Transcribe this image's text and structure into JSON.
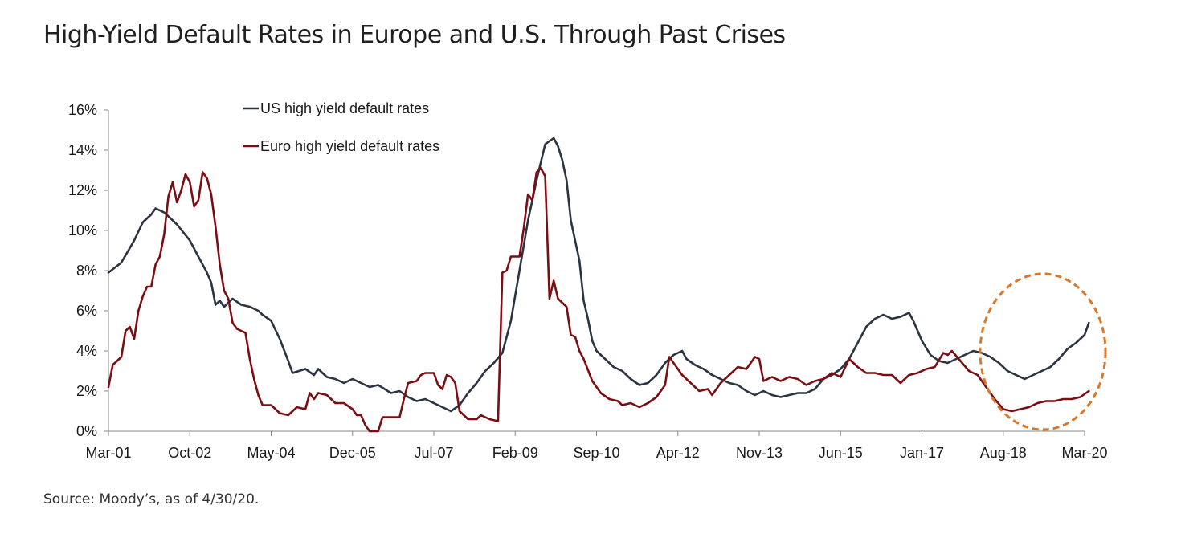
{
  "title": "High-Yield Default Rates in Europe and U.S. Through Past Crises",
  "source": "Source: Moody’s, as of 4/30/20.",
  "colors": {
    "us": "#2b3440",
    "euro": "#7a0e13",
    "highlight": "#d9782a",
    "axis": "#888888"
  },
  "chart_data": {
    "type": "line",
    "title": "High-Yield Default Rates in Europe and U.S. Through Past Crises",
    "xlabel": "",
    "ylabel": "",
    "ylim": [
      0,
      16
    ],
    "yticks": [
      "0%",
      "2%",
      "4%",
      "6%",
      "8%",
      "10%",
      "12%",
      "14%",
      "16%"
    ],
    "yticks_values": [
      0,
      2,
      4,
      6,
      8,
      10,
      12,
      14,
      16
    ],
    "xticks": [
      "Mar-01",
      "Oct-02",
      "May-04",
      "Dec-05",
      "Jul-07",
      "Feb-09",
      "Sep-10",
      "Apr-12",
      "Nov-13",
      "Jun-15",
      "Jan-17",
      "Aug-18",
      "Mar-20"
    ],
    "xticks_values": [
      0,
      19,
      38,
      57,
      76,
      95,
      114,
      133,
      152,
      171,
      190,
      209,
      228
    ],
    "x_unit": "months since Mar-01",
    "legend_position": "top-left",
    "annotation": "dashed orange circle highlighting Aug-18 to Mar-20",
    "series": [
      {
        "name": "US high yield default rates",
        "color": "#2b3440",
        "points": [
          [
            0,
            7.9
          ],
          [
            3,
            8.4
          ],
          [
            6,
            9.5
          ],
          [
            8,
            10.4
          ],
          [
            10,
            10.8
          ],
          [
            11,
            11.1
          ],
          [
            13,
            10.9
          ],
          [
            16,
            10.3
          ],
          [
            19,
            9.5
          ],
          [
            21,
            8.7
          ],
          [
            23,
            7.9
          ],
          [
            24,
            7.4
          ],
          [
            25,
            6.3
          ],
          [
            26,
            6.5
          ],
          [
            27,
            6.2
          ],
          [
            29,
            6.6
          ],
          [
            31,
            6.3
          ],
          [
            33,
            6.2
          ],
          [
            35,
            6.0
          ],
          [
            36,
            5.8
          ],
          [
            38,
            5.5
          ],
          [
            40,
            4.6
          ],
          [
            42,
            3.5
          ],
          [
            43,
            2.9
          ],
          [
            46,
            3.1
          ],
          [
            48,
            2.8
          ],
          [
            49,
            3.1
          ],
          [
            51,
            2.7
          ],
          [
            53,
            2.6
          ],
          [
            55,
            2.4
          ],
          [
            57,
            2.6
          ],
          [
            59,
            2.4
          ],
          [
            61,
            2.2
          ],
          [
            63,
            2.3
          ],
          [
            66,
            1.9
          ],
          [
            68,
            2.0
          ],
          [
            70,
            1.7
          ],
          [
            72,
            1.5
          ],
          [
            74,
            1.6
          ],
          [
            76,
            1.4
          ],
          [
            78,
            1.2
          ],
          [
            80,
            1.0
          ],
          [
            82,
            1.3
          ],
          [
            84,
            1.9
          ],
          [
            86,
            2.4
          ],
          [
            88,
            3.0
          ],
          [
            90,
            3.4
          ],
          [
            92,
            3.9
          ],
          [
            94,
            5.5
          ],
          [
            96,
            8.0
          ],
          [
            98,
            10.5
          ],
          [
            100,
            12.5
          ],
          [
            101,
            13.4
          ],
          [
            102,
            14.3
          ],
          [
            104,
            14.6
          ],
          [
            105,
            14.2
          ],
          [
            106,
            13.5
          ],
          [
            107,
            12.5
          ],
          [
            108,
            10.5
          ],
          [
            110,
            8.5
          ],
          [
            111,
            6.5
          ],
          [
            112,
            5.6
          ],
          [
            113,
            4.5
          ],
          [
            114,
            4.0
          ],
          [
            116,
            3.6
          ],
          [
            118,
            3.2
          ],
          [
            120,
            3.0
          ],
          [
            122,
            2.6
          ],
          [
            124,
            2.3
          ],
          [
            126,
            2.4
          ],
          [
            128,
            2.8
          ],
          [
            130,
            3.4
          ],
          [
            132,
            3.8
          ],
          [
            134,
            4.0
          ],
          [
            135,
            3.6
          ],
          [
            137,
            3.3
          ],
          [
            139,
            3.1
          ],
          [
            141,
            2.8
          ],
          [
            143,
            2.6
          ],
          [
            145,
            2.4
          ],
          [
            147,
            2.3
          ],
          [
            149,
            2.0
          ],
          [
            151,
            1.8
          ],
          [
            153,
            2.0
          ],
          [
            155,
            1.8
          ],
          [
            157,
            1.7
          ],
          [
            159,
            1.8
          ],
          [
            161,
            1.9
          ],
          [
            163,
            1.9
          ],
          [
            165,
            2.1
          ],
          [
            167,
            2.6
          ],
          [
            169,
            2.8
          ],
          [
            171,
            3.1
          ],
          [
            173,
            3.6
          ],
          [
            175,
            4.4
          ],
          [
            177,
            5.2
          ],
          [
            179,
            5.6
          ],
          [
            181,
            5.8
          ],
          [
            183,
            5.6
          ],
          [
            185,
            5.7
          ],
          [
            187,
            5.9
          ],
          [
            188,
            5.5
          ],
          [
            190,
            4.5
          ],
          [
            192,
            3.8
          ],
          [
            194,
            3.5
          ],
          [
            196,
            3.4
          ],
          [
            198,
            3.6
          ],
          [
            200,
            3.8
          ],
          [
            202,
            4.0
          ],
          [
            204,
            3.9
          ],
          [
            206,
            3.7
          ],
          [
            208,
            3.4
          ],
          [
            210,
            3.0
          ],
          [
            212,
            2.8
          ],
          [
            214,
            2.6
          ],
          [
            216,
            2.8
          ],
          [
            218,
            3.0
          ],
          [
            220,
            3.2
          ],
          [
            222,
            3.6
          ],
          [
            224,
            4.1
          ],
          [
            226,
            4.4
          ],
          [
            228,
            4.8
          ],
          [
            229,
            5.4
          ]
        ]
      },
      {
        "name": "Euro high yield default rates",
        "color": "#7a0e13",
        "points": [
          [
            0,
            2.2
          ],
          [
            1,
            3.3
          ],
          [
            3,
            3.7
          ],
          [
            4,
            5.0
          ],
          [
            5,
            5.2
          ],
          [
            6,
            4.6
          ],
          [
            7,
            6.0
          ],
          [
            8,
            6.7
          ],
          [
            9,
            7.2
          ],
          [
            10,
            7.2
          ],
          [
            11,
            8.3
          ],
          [
            12,
            8.7
          ],
          [
            13,
            9.8
          ],
          [
            14,
            11.7
          ],
          [
            15,
            12.4
          ],
          [
            16,
            11.4
          ],
          [
            17,
            12.0
          ],
          [
            18,
            12.8
          ],
          [
            19,
            12.4
          ],
          [
            20,
            11.2
          ],
          [
            21,
            11.5
          ],
          [
            22,
            12.9
          ],
          [
            23,
            12.6
          ],
          [
            24,
            11.8
          ],
          [
            25,
            10.2
          ],
          [
            26,
            8.3
          ],
          [
            27,
            7.0
          ],
          [
            28,
            6.6
          ],
          [
            29,
            5.4
          ],
          [
            30,
            5.1
          ],
          [
            31,
            5.0
          ],
          [
            32,
            4.9
          ],
          [
            33,
            3.6
          ],
          [
            34,
            2.6
          ],
          [
            35,
            1.8
          ],
          [
            36,
            1.3
          ],
          [
            38,
            1.3
          ],
          [
            40,
            0.9
          ],
          [
            42,
            0.8
          ],
          [
            44,
            1.2
          ],
          [
            46,
            1.1
          ],
          [
            47,
            1.9
          ],
          [
            48,
            1.6
          ],
          [
            49,
            1.9
          ],
          [
            51,
            1.8
          ],
          [
            53,
            1.4
          ],
          [
            55,
            1.4
          ],
          [
            57,
            1.1
          ],
          [
            58,
            0.8
          ],
          [
            59,
            0.8
          ],
          [
            60,
            0.3
          ],
          [
            61,
            0.0
          ],
          [
            63,
            0.0
          ],
          [
            64,
            0.7
          ],
          [
            66,
            0.7
          ],
          [
            68,
            0.7
          ],
          [
            69,
            1.6
          ],
          [
            70,
            2.4
          ],
          [
            72,
            2.5
          ],
          [
            73,
            2.8
          ],
          [
            74,
            2.9
          ],
          [
            76,
            2.9
          ],
          [
            77,
            2.3
          ],
          [
            78,
            2.1
          ],
          [
            79,
            2.8
          ],
          [
            80,
            2.7
          ],
          [
            81,
            2.4
          ],
          [
            82,
            1.0
          ],
          [
            84,
            0.6
          ],
          [
            86,
            0.6
          ],
          [
            87,
            0.8
          ],
          [
            89,
            0.6
          ],
          [
            91,
            0.5
          ],
          [
            92,
            7.9
          ],
          [
            93,
            8.0
          ],
          [
            94,
            8.7
          ],
          [
            96,
            8.7
          ],
          [
            97,
            10.1
          ],
          [
            98,
            11.8
          ],
          [
            99,
            11.5
          ],
          [
            100,
            12.9
          ],
          [
            101,
            13.1
          ],
          [
            102,
            12.7
          ],
          [
            103,
            6.6
          ],
          [
            104,
            7.5
          ],
          [
            105,
            6.6
          ],
          [
            107,
            6.2
          ],
          [
            108,
            4.8
          ],
          [
            109,
            4.7
          ],
          [
            110,
            4.0
          ],
          [
            111,
            3.6
          ],
          [
            113,
            2.5
          ],
          [
            115,
            1.9
          ],
          [
            117,
            1.6
          ],
          [
            119,
            1.5
          ],
          [
            120,
            1.3
          ],
          [
            122,
            1.4
          ],
          [
            124,
            1.2
          ],
          [
            126,
            1.4
          ],
          [
            128,
            1.7
          ],
          [
            130,
            2.3
          ],
          [
            131,
            3.7
          ],
          [
            132,
            3.4
          ],
          [
            134,
            2.8
          ],
          [
            136,
            2.4
          ],
          [
            138,
            2.0
          ],
          [
            140,
            2.1
          ],
          [
            141,
            1.8
          ],
          [
            143,
            2.4
          ],
          [
            145,
            2.8
          ],
          [
            147,
            3.2
          ],
          [
            149,
            3.1
          ],
          [
            151,
            3.7
          ],
          [
            152,
            3.6
          ],
          [
            153,
            2.5
          ],
          [
            155,
            2.7
          ],
          [
            157,
            2.5
          ],
          [
            159,
            2.7
          ],
          [
            161,
            2.6
          ],
          [
            163,
            2.3
          ],
          [
            165,
            2.5
          ],
          [
            167,
            2.6
          ],
          [
            169,
            2.9
          ],
          [
            171,
            2.7
          ],
          [
            173,
            3.6
          ],
          [
            175,
            3.2
          ],
          [
            177,
            2.9
          ],
          [
            179,
            2.9
          ],
          [
            181,
            2.8
          ],
          [
            183,
            2.8
          ],
          [
            185,
            2.4
          ],
          [
            187,
            2.8
          ],
          [
            189,
            2.9
          ],
          [
            191,
            3.1
          ],
          [
            193,
            3.2
          ],
          [
            195,
            3.9
          ],
          [
            196,
            3.8
          ],
          [
            197,
            4.0
          ],
          [
            199,
            3.5
          ],
          [
            201,
            3.0
          ],
          [
            203,
            2.8
          ],
          [
            205,
            2.2
          ],
          [
            207,
            1.6
          ],
          [
            209,
            1.1
          ],
          [
            211,
            1.0
          ],
          [
            213,
            1.1
          ],
          [
            215,
            1.2
          ],
          [
            217,
            1.4
          ],
          [
            219,
            1.5
          ],
          [
            221,
            1.5
          ],
          [
            223,
            1.6
          ],
          [
            225,
            1.6
          ],
          [
            227,
            1.7
          ],
          [
            229,
            2.0
          ]
        ]
      }
    ]
  }
}
